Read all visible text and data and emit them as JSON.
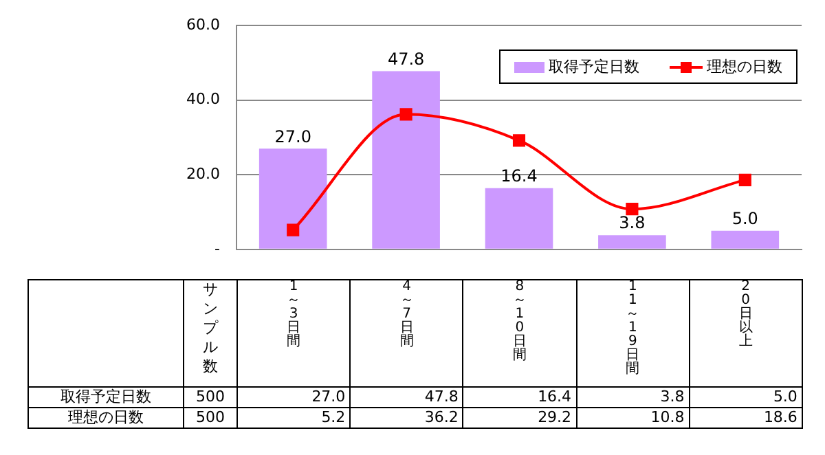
{
  "chart_data": {
    "type": "bar",
    "categories": [
      "1～3日間",
      "4～7日間",
      "8～10日間",
      "11～19日間",
      "20日以上"
    ],
    "series": [
      {
        "name": "取得予定日数",
        "color": "#cc99ff",
        "values": [
          27.0,
          47.8,
          16.4,
          3.8,
          5.0
        ],
        "value_labels": [
          "27.0",
          "47.8",
          "16.4",
          "3.8",
          "5.0"
        ]
      },
      {
        "name": "理想の日数",
        "type": "line",
        "color": "#ff0000",
        "values": [
          5.2,
          36.2,
          29.2,
          10.8,
          18.6
        ],
        "value_labels": [
          "5.2",
          "36.2",
          "29.2",
          "10.8",
          "18.6"
        ]
      }
    ],
    "ylim": [
      0,
      60
    ],
    "yticks": [
      {
        "value": 0,
        "label": "-"
      },
      {
        "value": 20,
        "label": "20.0"
      },
      {
        "value": 40,
        "label": "40.0"
      },
      {
        "value": 60,
        "label": "60.0"
      }
    ],
    "grid": "y",
    "legend": "top right",
    "marker": "square",
    "data_labels": true,
    "tick_labels": "y",
    "annotations": [
      "サンプル数",
      "500",
      "500"
    ]
  }
}
